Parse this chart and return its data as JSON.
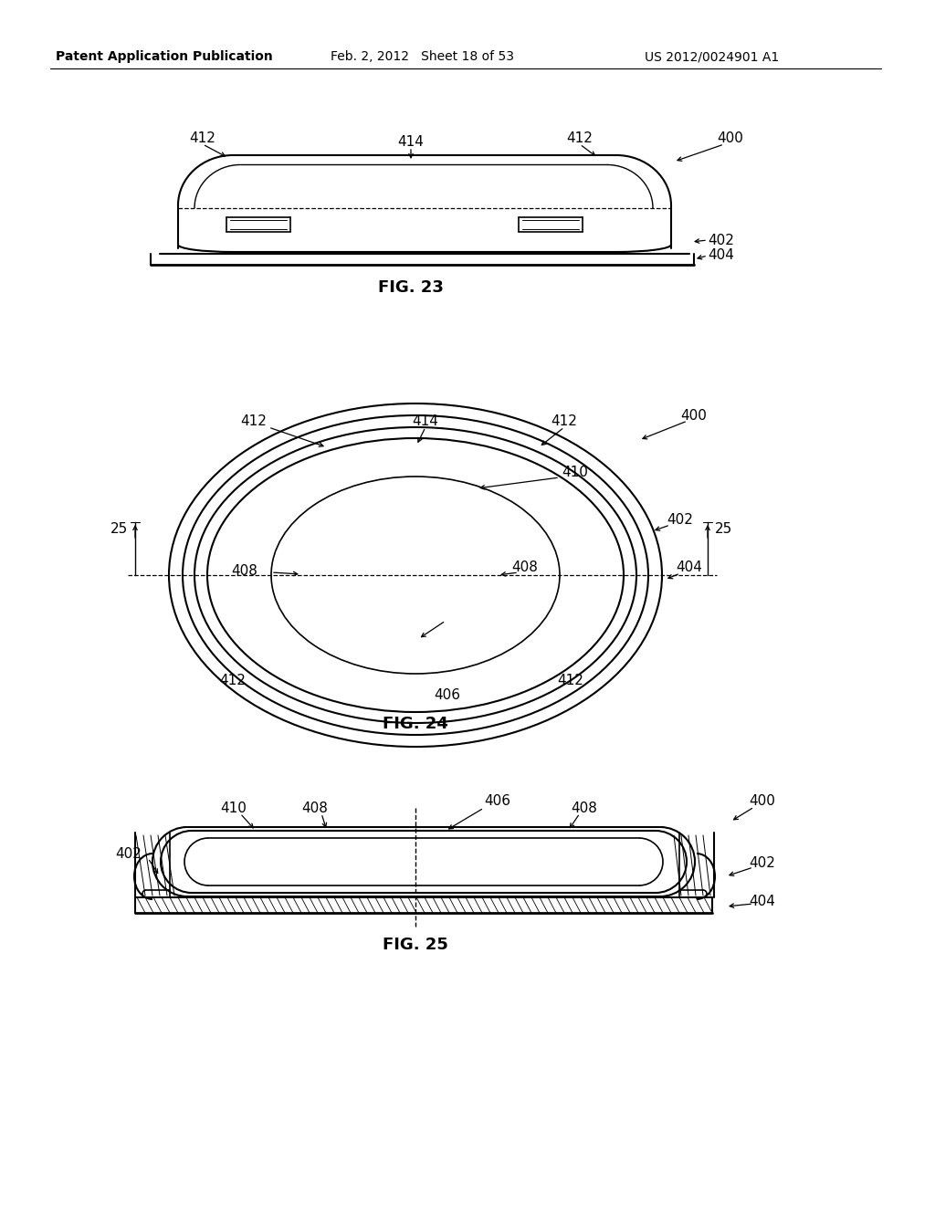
{
  "bg_color": "#ffffff",
  "text_color": "#000000",
  "line_color": "#000000",
  "header_left": "Patent Application Publication",
  "header_mid": "Feb. 2, 2012   Sheet 18 of 53",
  "header_right": "US 2012/0024901 A1",
  "fig23_label": "FIG. 23",
  "fig24_label": "FIG. 24",
  "fig25_label": "FIG. 25",
  "font_size_header": 10,
  "font_size_ref": 11,
  "font_size_fig": 13
}
